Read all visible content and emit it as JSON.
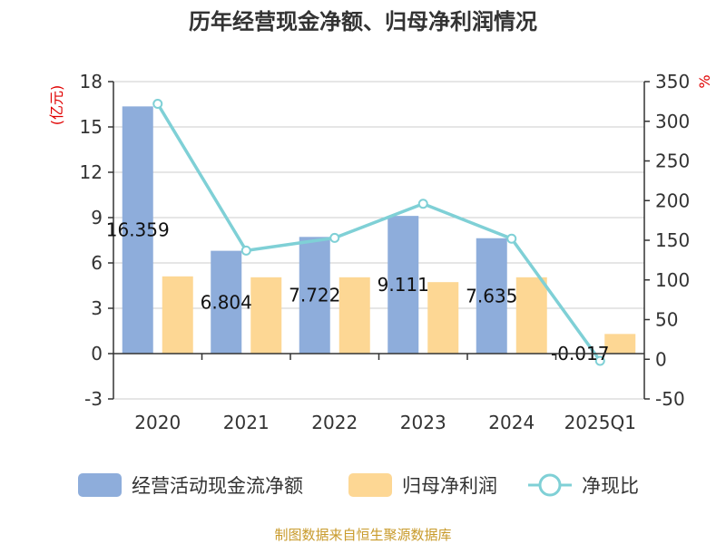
{
  "chart_data": {
    "type": "bar",
    "title": "历年经营现金净额、归母净利润情况",
    "categories": [
      "2020",
      "2021",
      "2022",
      "2023",
      "2024",
      "2025Q1"
    ],
    "left_axis": {
      "unit": "(亿元)",
      "ylim": [
        -3,
        18
      ],
      "ticks": [
        "-3",
        "0",
        "3",
        "6",
        "9",
        "12",
        "15",
        "18"
      ]
    },
    "right_axis": {
      "unit": "%",
      "ylim": [
        -50,
        350
      ],
      "ticks": [
        "-50",
        "0",
        "50",
        "100",
        "150",
        "200",
        "250",
        "300",
        "350"
      ]
    },
    "series": [
      {
        "name": "经营活动现金流净额",
        "type": "bar",
        "axis": "left",
        "color": "#8eaddb",
        "values": [
          16.359,
          6.804,
          7.722,
          9.111,
          7.635,
          -0.017
        ],
        "labels": [
          "16.359",
          "6.804",
          "7.722",
          "9.111",
          "7.635",
          "-0.017"
        ]
      },
      {
        "name": "归母净利润",
        "type": "bar",
        "axis": "left",
        "color": "#fdd794",
        "values": [
          5.11,
          5.05,
          5.05,
          4.73,
          5.05,
          1.3
        ]
      },
      {
        "name": "净现比",
        "type": "line",
        "axis": "right",
        "color": "#7fd0d6",
        "values": [
          322,
          137,
          153,
          196,
          152,
          -2
        ]
      }
    ],
    "grid": true,
    "legend": "bottom"
  },
  "source": "制图数据来自恒生聚源数据库"
}
